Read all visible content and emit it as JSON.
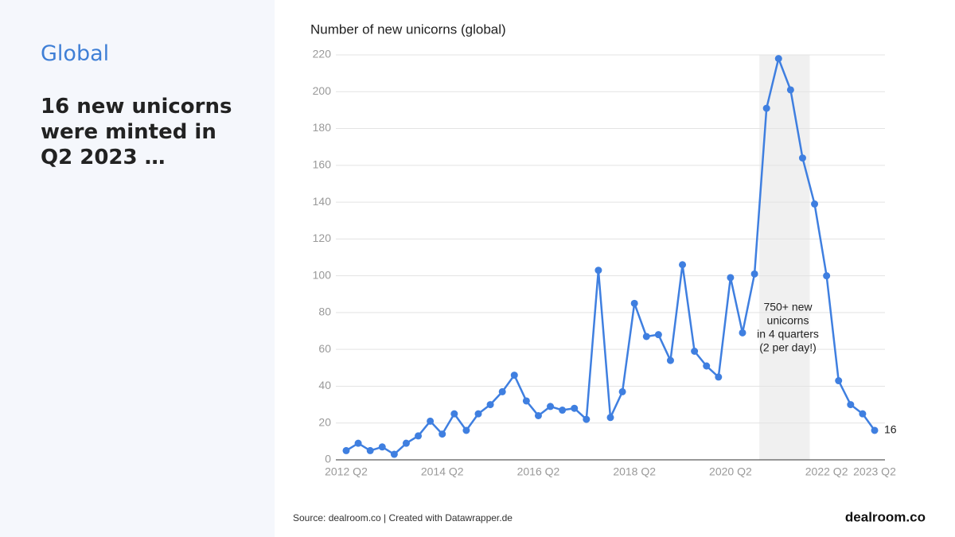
{
  "side": {
    "kicker": "Global",
    "headline": "16 new unicorns were minted in Q2 2023 …"
  },
  "chart_data": {
    "type": "line",
    "title": "Number of new unicorns (global)",
    "categories": [
      "2012 Q2",
      null,
      null,
      null,
      null,
      null,
      null,
      null,
      "2014 Q2",
      null,
      null,
      null,
      null,
      null,
      null,
      null,
      "2016 Q2",
      null,
      null,
      null,
      null,
      null,
      null,
      null,
      "2018 Q2",
      null,
      null,
      null,
      null,
      null,
      null,
      null,
      "2020 Q2",
      null,
      null,
      null,
      null,
      null,
      null,
      null,
      "2022 Q2",
      null,
      null,
      null,
      "2023 Q2"
    ],
    "series": [
      {
        "name": "New unicorns",
        "color": "#3f7fe0",
        "values": [
          5,
          9,
          5,
          7,
          3,
          9,
          13,
          21,
          14,
          25,
          16,
          25,
          30,
          37,
          46,
          32,
          24,
          29,
          27,
          28,
          22,
          103,
          23,
          37,
          85,
          67,
          68,
          54,
          106,
          59,
          51,
          45,
          99,
          69,
          101,
          191,
          218,
          201,
          164,
          139,
          100,
          43,
          30,
          25,
          16
        ]
      }
    ],
    "ylim": [
      0,
      220
    ],
    "yticks": [
      0,
      20,
      40,
      60,
      80,
      100,
      120,
      140,
      160,
      180,
      200,
      220
    ],
    "grid": true,
    "highlight": {
      "from": 35,
      "to": 38
    },
    "annotation": [
      "750+ new",
      "unicorns",
      "in 4 quarters",
      "(2 per day!)"
    ],
    "source": "Source: dealroom.co | Created with Datawrapper.de",
    "logo": "dealroom.co"
  }
}
